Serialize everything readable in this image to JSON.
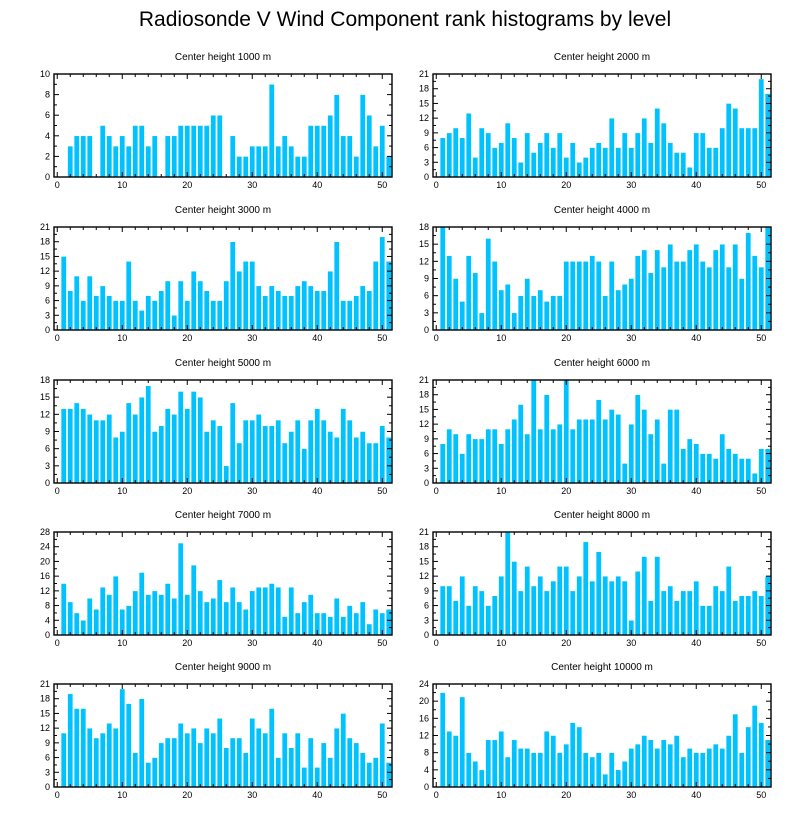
{
  "title": "Radiosonde V Wind Component rank histograms by level",
  "colors": {
    "bar": "#00c2ff",
    "axis": "#000000",
    "background": "#ffffff"
  },
  "chart_data": [
    {
      "type": "bar",
      "title": "Center height 1000 m",
      "ylim": [
        0,
        10
      ],
      "yticks": [
        0,
        2,
        4,
        6,
        8,
        10
      ],
      "xticks": [
        0,
        10,
        20,
        30,
        40,
        50
      ],
      "xlim": [
        -0.5,
        51.5
      ],
      "values": [
        0,
        3,
        4,
        4,
        4,
        0,
        5,
        4,
        3,
        4,
        3,
        5,
        5,
        3,
        4,
        0,
        4,
        4,
        5,
        5,
        5,
        5,
        5,
        6,
        6,
        0,
        4,
        2,
        2,
        3,
        3,
        3,
        9,
        3,
        4,
        3,
        2,
        2,
        5,
        5,
        5,
        6,
        8,
        4,
        4,
        2,
        8,
        6,
        3,
        5,
        2
      ]
    },
    {
      "type": "bar",
      "title": "Center height 2000 m",
      "ylim": [
        0,
        21
      ],
      "yticks": [
        0,
        3,
        6,
        9,
        12,
        15,
        18,
        21
      ],
      "xticks": [
        0,
        10,
        20,
        30,
        40,
        50
      ],
      "xlim": [
        -0.5,
        51.5
      ],
      "values": [
        8,
        9,
        10,
        8,
        13,
        4,
        10,
        9,
        6,
        7,
        11,
        8,
        3,
        9,
        5,
        7,
        9,
        6,
        9,
        4,
        7,
        3,
        4,
        6,
        7,
        6,
        12,
        6,
        9,
        6,
        9,
        12,
        7,
        14,
        11,
        7,
        5,
        5,
        2,
        9,
        9,
        6,
        6,
        10,
        15,
        14,
        10,
        10,
        10,
        20,
        17
      ]
    },
    {
      "type": "bar",
      "title": "Center height 3000 m",
      "ylim": [
        0,
        21
      ],
      "yticks": [
        0,
        3,
        6,
        9,
        12,
        15,
        18,
        21
      ],
      "xticks": [
        0,
        10,
        20,
        30,
        40,
        50
      ],
      "xlim": [
        -0.5,
        51.5
      ],
      "values": [
        15,
        8,
        11,
        6,
        11,
        7,
        9,
        7,
        6,
        6,
        14,
        6,
        4,
        7,
        6,
        8,
        10,
        3,
        10,
        6,
        12,
        10,
        8,
        6,
        6,
        10,
        18,
        12,
        14,
        14,
        9,
        7,
        9,
        8,
        7,
        7,
        9,
        10,
        9,
        8,
        8,
        12,
        18,
        6,
        6,
        7,
        9,
        8,
        14,
        19,
        14
      ]
    },
    {
      "type": "bar",
      "title": "Center height 4000 m",
      "ylim": [
        0,
        18
      ],
      "yticks": [
        0,
        3,
        6,
        9,
        12,
        15,
        18
      ],
      "xticks": [
        0,
        10,
        20,
        30,
        40,
        50
      ],
      "xlim": [
        -0.5,
        51.5
      ],
      "values": [
        18,
        13,
        9,
        5,
        13,
        10,
        3,
        16,
        12,
        7,
        8,
        3,
        6,
        9,
        6,
        7,
        5,
        6,
        6,
        12,
        12,
        12,
        12,
        13,
        12,
        6,
        12,
        7,
        8,
        9,
        13,
        14,
        10,
        14,
        11,
        15,
        12,
        12,
        14,
        15,
        12,
        11,
        14,
        15,
        11,
        15,
        9,
        17,
        13,
        11,
        18
      ]
    },
    {
      "type": "bar",
      "title": "Center height 5000 m",
      "ylim": [
        0,
        18
      ],
      "yticks": [
        0,
        3,
        6,
        9,
        12,
        15,
        18
      ],
      "xticks": [
        0,
        10,
        20,
        30,
        40,
        50
      ],
      "xlim": [
        -0.5,
        51.5
      ],
      "values": [
        13,
        13,
        14,
        13,
        12,
        11,
        11,
        12,
        8,
        9,
        14,
        12,
        15,
        17,
        9,
        10,
        13,
        12,
        16,
        13,
        16,
        15,
        9,
        11,
        10,
        3,
        14,
        7,
        11,
        11,
        12,
        10,
        10,
        11,
        7,
        9,
        11,
        6,
        11,
        13,
        11,
        9,
        8,
        13,
        11,
        8,
        9,
        7,
        7,
        10,
        8
      ]
    },
    {
      "type": "bar",
      "title": "Center height 6000 m",
      "ylim": [
        0,
        21
      ],
      "yticks": [
        0,
        3,
        6,
        9,
        12,
        15,
        18,
        21
      ],
      "xticks": [
        0,
        10,
        20,
        30,
        40,
        50
      ],
      "xlim": [
        -0.5,
        51.5
      ],
      "values": [
        8,
        11,
        10,
        6,
        10,
        9,
        9,
        11,
        11,
        8,
        11,
        13,
        16,
        10,
        21,
        11,
        18,
        11,
        12,
        21,
        11,
        13,
        13,
        13,
        17,
        13,
        15,
        14,
        4,
        12,
        18,
        15,
        10,
        13,
        4,
        15,
        15,
        7,
        9,
        8,
        6,
        6,
        5,
        10,
        7,
        6,
        5,
        5,
        2,
        7,
        7
      ]
    },
    {
      "type": "bar",
      "title": "Center height 7000 m",
      "ylim": [
        0,
        28
      ],
      "yticks": [
        0,
        4,
        8,
        12,
        16,
        20,
        24,
        28
      ],
      "xticks": [
        0,
        10,
        20,
        30,
        40,
        50
      ],
      "xlim": [
        -0.5,
        51.5
      ],
      "values": [
        14,
        9,
        6,
        4,
        10,
        7,
        13,
        11,
        16,
        7,
        8,
        12,
        17,
        11,
        12,
        11,
        14,
        10,
        25,
        11,
        19,
        12,
        9,
        10,
        15,
        9,
        13,
        9,
        7,
        12,
        13,
        13,
        14,
        13,
        5,
        13,
        6,
        9,
        11,
        6,
        6,
        5,
        10,
        5,
        8,
        6,
        9,
        3,
        7,
        6,
        7
      ]
    },
    {
      "type": "bar",
      "title": "Center height 8000 m",
      "ylim": [
        0,
        21
      ],
      "yticks": [
        0,
        3,
        6,
        9,
        12,
        15,
        18,
        21
      ],
      "xticks": [
        0,
        10,
        20,
        30,
        40,
        50
      ],
      "xlim": [
        -0.5,
        51.5
      ],
      "values": [
        10,
        10,
        7,
        12,
        6,
        10,
        9,
        6,
        8,
        12,
        21,
        15,
        9,
        14,
        10,
        12,
        9,
        11,
        14,
        14,
        9,
        12,
        19,
        11,
        17,
        12,
        11,
        12,
        11,
        3,
        13,
        16,
        7,
        16,
        9,
        10,
        7,
        9,
        9,
        11,
        6,
        6,
        10,
        9,
        14,
        7,
        8,
        8,
        9,
        8,
        12
      ]
    },
    {
      "type": "bar",
      "title": "Center height 9000 m",
      "ylim": [
        0,
        21
      ],
      "yticks": [
        0,
        3,
        6,
        9,
        12,
        15,
        18,
        21
      ],
      "xticks": [
        0,
        10,
        20,
        30,
        40,
        50
      ],
      "xlim": [
        -0.5,
        51.5
      ],
      "values": [
        11,
        19,
        16,
        16,
        12,
        10,
        11,
        13,
        12,
        20,
        17,
        7,
        18,
        5,
        6,
        9,
        10,
        10,
        13,
        11,
        12,
        9,
        12,
        11,
        14,
        8,
        10,
        10,
        7,
        14,
        12,
        11,
        16,
        6,
        11,
        8,
        11,
        4,
        10,
        4,
        9,
        6,
        12,
        15,
        10,
        9,
        7,
        5,
        6,
        13,
        5
      ]
    },
    {
      "type": "bar",
      "title": "Center height 10000 m",
      "ylim": [
        0,
        24
      ],
      "yticks": [
        0,
        4,
        8,
        12,
        16,
        20,
        24
      ],
      "xticks": [
        0,
        10,
        20,
        30,
        40,
        50
      ],
      "xlim": [
        -0.5,
        51.5
      ],
      "values": [
        22,
        13,
        12,
        21,
        8,
        6,
        4,
        11,
        11,
        13,
        7,
        11,
        9,
        9,
        8,
        8,
        13,
        12,
        8,
        10,
        15,
        14,
        8,
        7,
        8,
        3,
        8,
        4,
        6,
        9,
        10,
        12,
        11,
        9,
        11,
        10,
        12,
        7,
        9,
        8,
        8,
        9,
        10,
        9,
        12,
        17,
        8,
        14,
        19,
        15,
        11
      ]
    }
  ]
}
